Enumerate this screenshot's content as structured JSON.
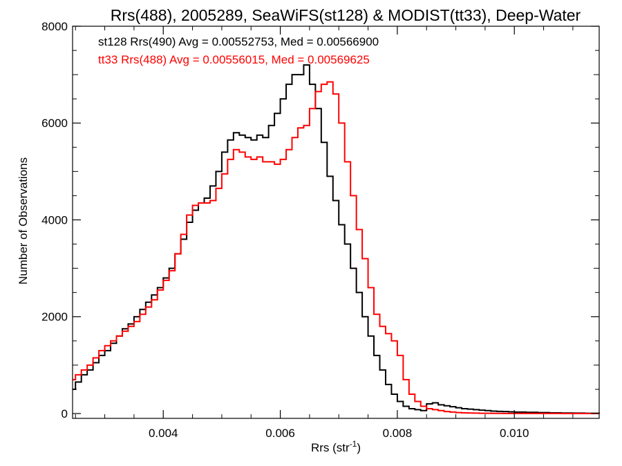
{
  "chart_data": {
    "type": "line",
    "step": true,
    "title": "Rrs(488), 2005289, SeaWiFS(st128) & MODIST(tt33), Deep-Water",
    "xlabel": "Rrs (str",
    "xlabel_sup": "-1",
    "xlabel_close": ")",
    "ylabel": "Number of Observations",
    "xlim": [
      0.00245,
      0.01145
    ],
    "ylim": [
      -100,
      8000
    ],
    "xticks": [
      0.004,
      0.006,
      0.008,
      0.01
    ],
    "xtick_labels": [
      "0.004",
      "0.006",
      "0.008",
      "0.010"
    ],
    "yticks": [
      0,
      2000,
      4000,
      6000,
      8000
    ],
    "ytick_labels": [
      "0",
      "2000",
      "4000",
      "6000",
      "8000"
    ],
    "grid": false,
    "legend_position": "top-left",
    "series": [
      {
        "name": "st128 Rrs(490)",
        "legend_text": "st128 Rrs(490) Avg = 0.00552753, Med = 0.00566900",
        "color": "#000000",
        "x": [
          0.00245,
          0.0025,
          0.0026,
          0.0027,
          0.0028,
          0.0029,
          0.003,
          0.0031,
          0.0032,
          0.0033,
          0.0034,
          0.0035,
          0.0036,
          0.0037,
          0.0038,
          0.0039,
          0.004,
          0.0041,
          0.0042,
          0.0043,
          0.0044,
          0.0045,
          0.0046,
          0.0047,
          0.0048,
          0.0049,
          0.005,
          0.0051,
          0.0052,
          0.0053,
          0.0054,
          0.0055,
          0.0056,
          0.0057,
          0.0058,
          0.0059,
          0.006,
          0.0061,
          0.0062,
          0.0063,
          0.0064,
          0.0065,
          0.0066,
          0.0067,
          0.0068,
          0.0069,
          0.007,
          0.0071,
          0.0072,
          0.0073,
          0.0074,
          0.0075,
          0.0076,
          0.0077,
          0.0078,
          0.0079,
          0.008,
          0.0081,
          0.0082,
          0.0083,
          0.0084,
          0.0085,
          0.0086,
          0.0087,
          0.0088,
          0.0089,
          0.009,
          0.0091,
          0.0092,
          0.0093,
          0.0094,
          0.0095,
          0.0096,
          0.0097,
          0.0098,
          0.0099,
          0.01,
          0.0102,
          0.0104,
          0.0106,
          0.0108,
          0.011,
          0.0112,
          0.01145
        ],
        "y": [
          500,
          650,
          800,
          900,
          1050,
          1200,
          1300,
          1450,
          1600,
          1750,
          1850,
          2000,
          2150,
          2300,
          2450,
          2600,
          2800,
          3000,
          3300,
          3600,
          3950,
          4200,
          4350,
          4450,
          4700,
          5000,
          5400,
          5650,
          5800,
          5750,
          5700,
          5650,
          5750,
          5700,
          5950,
          6200,
          6500,
          6800,
          7000,
          7000,
          7200,
          6800,
          6300,
          5600,
          4900,
          4400,
          3900,
          3500,
          3000,
          2500,
          2000,
          1600,
          1200,
          900,
          600,
          400,
          250,
          150,
          100,
          80,
          60,
          200,
          220,
          180,
          160,
          140,
          120,
          100,
          90,
          80,
          70,
          60,
          50,
          45,
          40,
          35,
          30,
          25,
          20,
          15,
          10,
          8,
          5,
          3
        ]
      },
      {
        "name": "tt33 Rrs(488)",
        "legend_text": "tt33 Rrs(488) Avg = 0.00556015, Med = 0.00569625",
        "color": "#ff0000",
        "x": [
          0.00245,
          0.0025,
          0.0026,
          0.0027,
          0.0028,
          0.0029,
          0.003,
          0.0031,
          0.0032,
          0.0033,
          0.0034,
          0.0035,
          0.0036,
          0.0037,
          0.0038,
          0.0039,
          0.004,
          0.0041,
          0.0042,
          0.0043,
          0.0044,
          0.0045,
          0.0046,
          0.0047,
          0.0048,
          0.0049,
          0.005,
          0.0051,
          0.0052,
          0.0053,
          0.0054,
          0.0055,
          0.0056,
          0.0057,
          0.0058,
          0.0059,
          0.006,
          0.0061,
          0.0062,
          0.0063,
          0.0064,
          0.0065,
          0.0066,
          0.0067,
          0.0068,
          0.0069,
          0.007,
          0.0071,
          0.0072,
          0.0073,
          0.0074,
          0.0075,
          0.0076,
          0.0077,
          0.0078,
          0.0079,
          0.008,
          0.0081,
          0.0082,
          0.0083,
          0.0084,
          0.0085,
          0.0086,
          0.0087,
          0.0088,
          0.0089,
          0.009,
          0.0091,
          0.0092,
          0.0093,
          0.0094,
          0.0095,
          0.0096,
          0.0097,
          0.0098,
          0.0099,
          0.01,
          0.0102,
          0.0104,
          0.0106,
          0.0108,
          0.011,
          0.0112,
          0.01145
        ],
        "y": [
          700,
          800,
          900,
          1000,
          1150,
          1300,
          1400,
          1500,
          1600,
          1700,
          1800,
          1900,
          2050,
          2200,
          2350,
          2550,
          2750,
          2950,
          3300,
          3700,
          4100,
          4300,
          4350,
          4350,
          4400,
          4650,
          4950,
          5250,
          5450,
          5400,
          5300,
          5250,
          5300,
          5200,
          5200,
          5150,
          5250,
          5450,
          5700,
          5900,
          5950,
          6300,
          6650,
          6800,
          6850,
          6600,
          6000,
          5200,
          4500,
          3800,
          3200,
          2600,
          2050,
          1800,
          1650,
          1500,
          1200,
          700,
          400,
          250,
          150,
          100,
          80,
          60,
          40,
          30,
          20,
          15,
          10,
          8,
          6,
          5,
          4,
          3,
          2,
          2,
          1,
          1,
          1,
          1,
          0,
          0,
          0,
          0
        ]
      }
    ]
  }
}
